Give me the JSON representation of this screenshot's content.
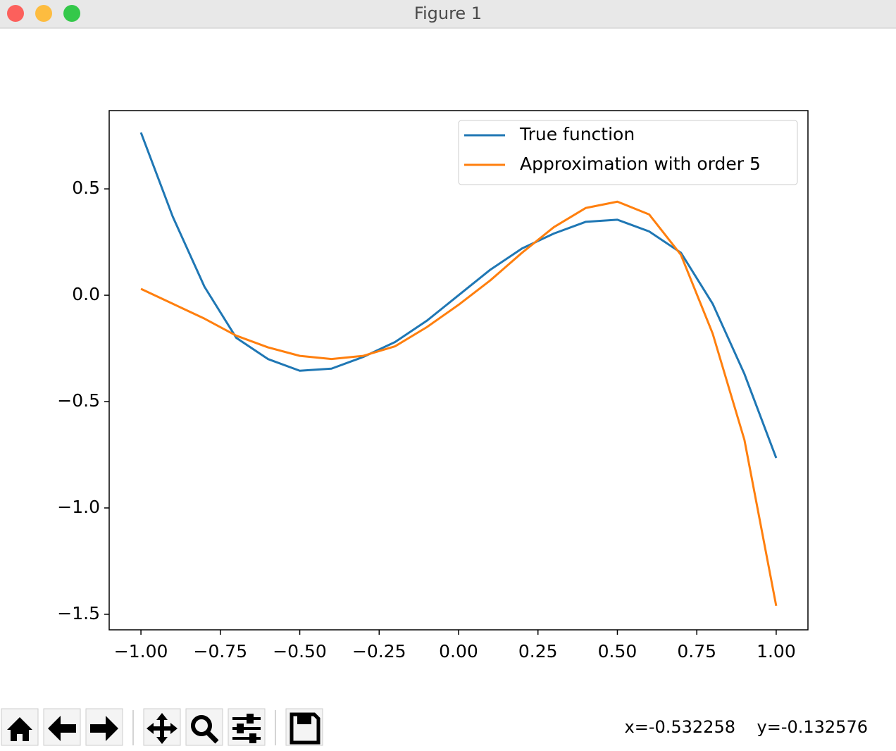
{
  "window": {
    "title": "Figure 1",
    "status": "x=-0.532258    y=-0.132576"
  },
  "chart_data": {
    "type": "line",
    "x": [
      -1.0,
      -0.9,
      -0.8,
      -0.7,
      -0.6,
      -0.5,
      -0.4,
      -0.3,
      -0.2,
      -0.1,
      0.0,
      0.1,
      0.2,
      0.3,
      0.4,
      0.5,
      0.6,
      0.7,
      0.8,
      0.9,
      1.0
    ],
    "series": [
      {
        "name": "True function",
        "color": "#1f77b4",
        "values": [
          0.765,
          0.37,
          0.04,
          -0.2,
          -0.3,
          -0.355,
          -0.345,
          -0.29,
          -0.22,
          -0.12,
          0.0,
          0.12,
          0.22,
          0.29,
          0.345,
          0.355,
          0.3,
          0.2,
          -0.04,
          -0.37,
          -0.765
        ]
      },
      {
        "name": "Approximation with order 5",
        "color": "#ff7f0e",
        "values": [
          0.03,
          -0.04,
          -0.11,
          -0.19,
          -0.245,
          -0.285,
          -0.3,
          -0.285,
          -0.24,
          -0.15,
          -0.045,
          0.07,
          0.2,
          0.32,
          0.41,
          0.44,
          0.38,
          0.19,
          -0.18,
          -0.68,
          -1.46
        ]
      }
    ],
    "xlim": [
      -1.1,
      1.1
    ],
    "ylim": [
      -1.573,
      0.868
    ],
    "xticks": [
      {
        "value": -1.0,
        "label": "−1.00"
      },
      {
        "value": -0.75,
        "label": "−0.75"
      },
      {
        "value": -0.5,
        "label": "−0.50"
      },
      {
        "value": -0.25,
        "label": "−0.25"
      },
      {
        "value": 0.0,
        "label": "0.00"
      },
      0.25,
      {
        "value": 0.5,
        "label": "0.50"
      },
      0.75,
      {
        "value": 1.0,
        "label": "1.00"
      }
    ],
    "yticks": [
      {
        "value": -1.5,
        "label": "−1.5"
      },
      {
        "value": -1.0,
        "label": "−1.0"
      },
      {
        "value": -0.5,
        "label": "−0.5"
      },
      {
        "value": 0.0,
        "label": "0.0"
      },
      0.5
    ],
    "legend": "upper right"
  }
}
